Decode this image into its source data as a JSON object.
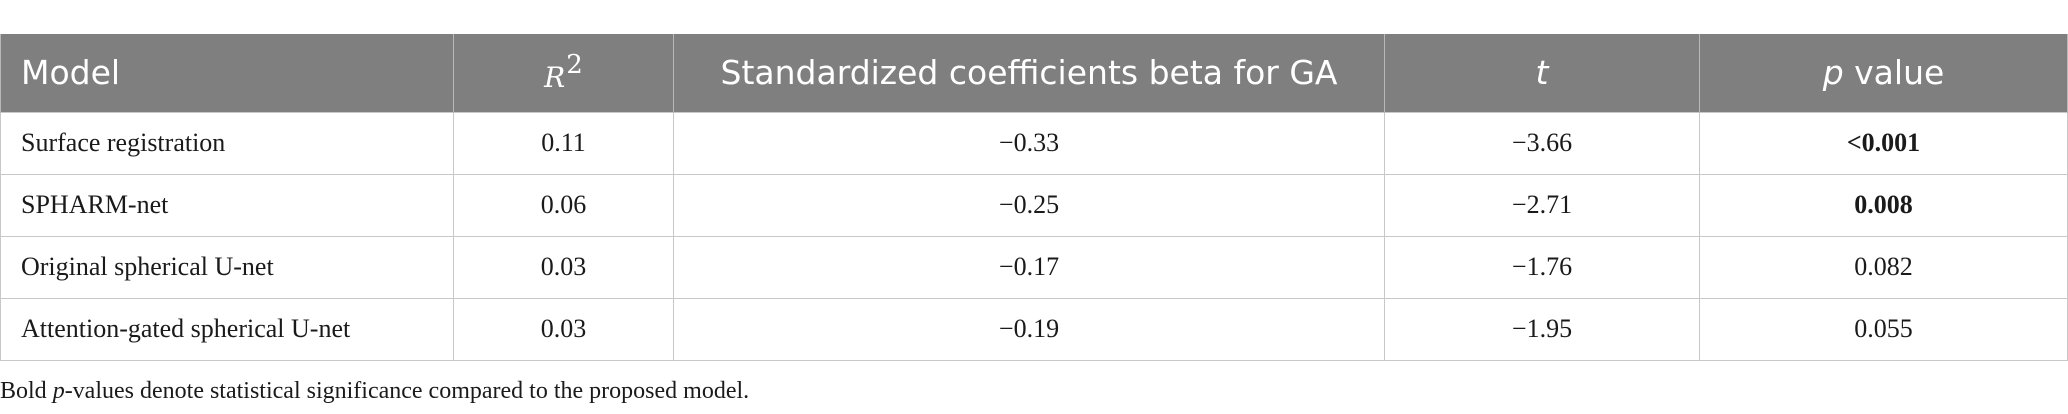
{
  "table": {
    "headers": {
      "model": "Model",
      "r2_base": "R",
      "r2_sup": "2",
      "beta": "Standardized coefficients beta for GA",
      "t": "t",
      "p_italic": "p",
      "p_rest": " value"
    },
    "rows": [
      {
        "model": "Surface registration",
        "r2": "0.11",
        "beta": "−0.33",
        "t": "−3.66",
        "p": "<0.001",
        "p_bold": true
      },
      {
        "model": "SPHARM-net",
        "r2": "0.06",
        "beta": "−0.25",
        "t": "−2.71",
        "p": "0.008",
        "p_bold": true
      },
      {
        "model": "Original spherical U-net",
        "r2": "0.03",
        "beta": "−0.17",
        "t": "−1.76",
        "p": "0.082",
        "p_bold": false
      },
      {
        "model": "Attention-gated spherical U-net",
        "r2": "0.03",
        "beta": "−0.19",
        "t": "−1.95",
        "p": "0.055",
        "p_bold": false
      }
    ]
  },
  "footnote": {
    "prefix": "Bold ",
    "italic": "p",
    "suffix": "-values denote statistical significance compared to the proposed model."
  },
  "colors": {
    "header_bg": "#7f7f7f",
    "header_text": "#ffffff",
    "border": "#c8c8c8"
  }
}
